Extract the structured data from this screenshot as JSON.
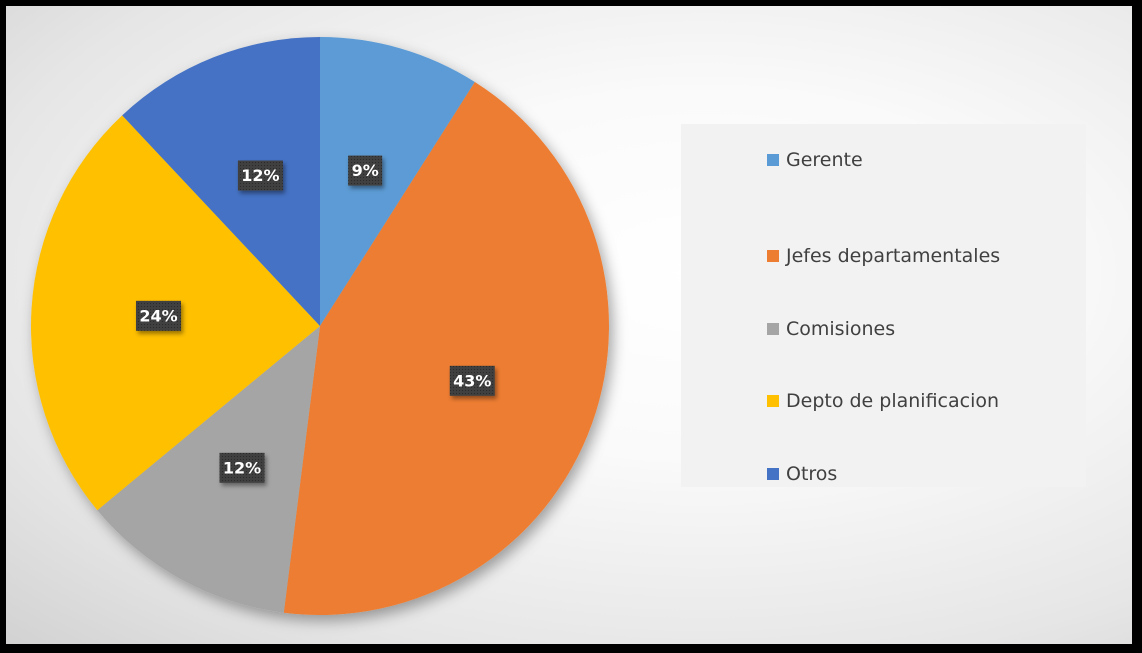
{
  "chart_data": {
    "type": "pie",
    "title": "",
    "categories": [
      "Gerente",
      "Jefes departamentales",
      "Comisiones",
      "Depto de planificacion",
      "Otros"
    ],
    "values": [
      9,
      43,
      12,
      24,
      12
    ],
    "data_labels": [
      "9%",
      "43%",
      "12%",
      "24%",
      "12%"
    ],
    "colors": [
      "#5B9BD5",
      "#ED7D31",
      "#A5A5A5",
      "#FFC000",
      "#4472C4"
    ],
    "legend_position": "right",
    "start_angle_deg": 0,
    "direction": "clockwise"
  }
}
